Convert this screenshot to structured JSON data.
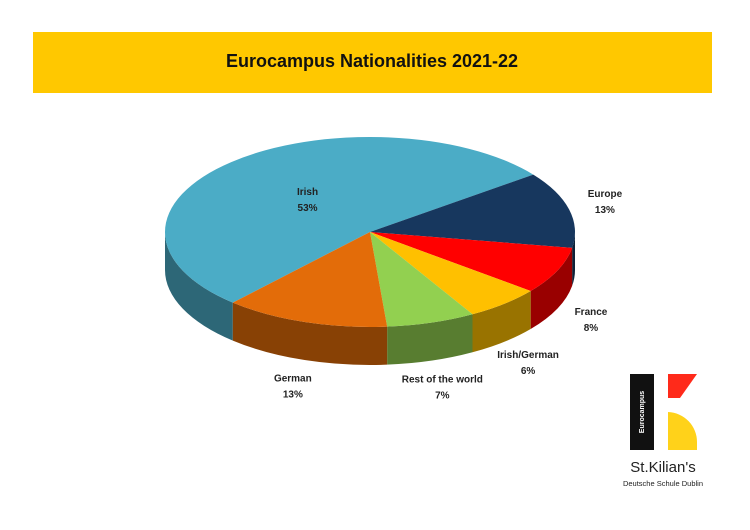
{
  "chart_data": {
    "type": "pie3d",
    "title": "Eurocampus Nationalities 2021-22",
    "categories": [
      "Irish",
      "Europe",
      "France",
      "Irish/German",
      "Rest of the world",
      "German"
    ],
    "values": [
      53,
      13,
      8,
      6,
      7,
      13
    ],
    "value_labels": [
      "53%",
      "13%",
      "8%",
      "6%",
      "7%",
      "13%"
    ],
    "colors": [
      "#4bacc6",
      "#17375e",
      "#ff0000",
      "#ffc000",
      "#92d050",
      "#e36c09"
    ]
  },
  "logo": {
    "vertical": "Eurocampus",
    "name": "St.Kilian's",
    "subtitle": "Deutsche Schule Dublin"
  }
}
